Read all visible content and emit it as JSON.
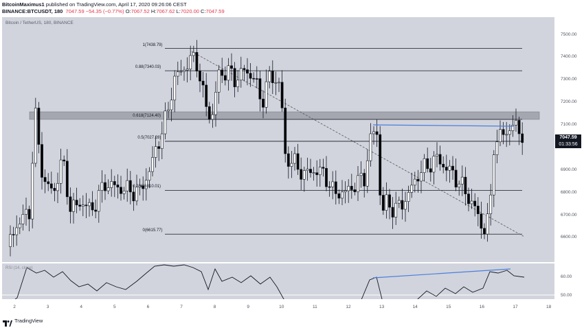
{
  "header": {
    "author": "BitcoinMaximus1",
    "published_text": " published on TradingView.com, April 17, 2020 09:26:06 CEST",
    "pair": "BINANCE:BTCUSDT, 180",
    "ohlc_change": "7047.59  −54.35 (−0.77%)",
    "o_label": " O:",
    "o_val": "7067.52",
    "h_label": " H:",
    "h_val": "7067.62",
    "l_label": " L:",
    "l_val": "7020.00",
    "c_label": " C:",
    "c_val": "7047.59"
  },
  "chart": {
    "symbol_label": "Bitcoin / TetherUS, 180, BINANCE",
    "last_price": "7047.59",
    "countdown": "01:33:56",
    "price_ticks": [
      "7500.00",
      "7400.00",
      "7300.00",
      "7200.00",
      "7100.00",
      "7000.00",
      "6900.00",
      "6800.00",
      "6700.00",
      "6600.00"
    ],
    "time_ticks": [
      "2",
      "3",
      "4",
      "5",
      "6",
      "7",
      "8",
      "9",
      "10",
      "11",
      "12",
      "13",
      "14",
      "15",
      "16",
      "17",
      "18"
    ],
    "rsi_ticks": [
      "60.00",
      "50.00"
    ],
    "fib_levels": [
      {
        "label": "1(7438.79)",
        "price": 7438.79
      },
      {
        "label": "0.88(7340.03)",
        "price": 7340.03
      },
      {
        "label": "0.618(7124.40)",
        "price": 7124.4
      },
      {
        "label": "0.5(7027.28)",
        "price": 7027.28
      },
      {
        "label": "0.236(6810.01)",
        "price": 6810.01
      },
      {
        "label": "0(6615.77)",
        "price": 6615.77
      }
    ],
    "colors": {
      "up": "#ffffff",
      "down": "#000000",
      "trendline": "#4a7ee0",
      "panel_bg": "#d1d4dc",
      "zone": "#9598a1"
    }
  },
  "footer": {
    "brand": "TradingView",
    "logo_icon": "tradingview-logo-icon"
  }
}
